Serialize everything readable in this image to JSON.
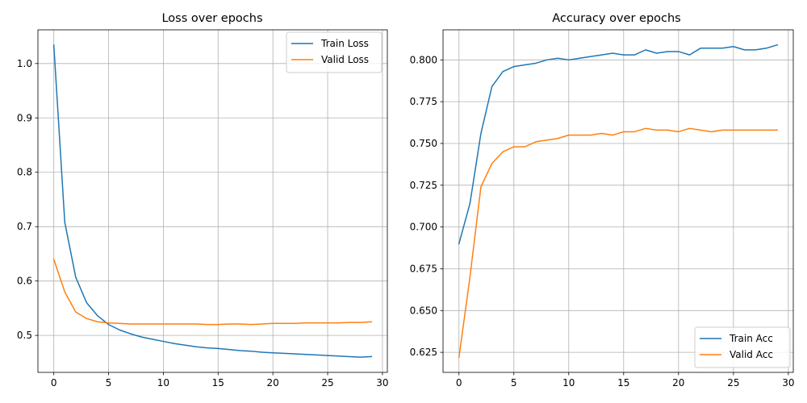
{
  "colors": {
    "train": "#1f77b4",
    "valid": "#ff7f0e"
  },
  "chart_data": [
    {
      "type": "line",
      "title": "Loss over epochs",
      "xlabel": "",
      "ylabel": "",
      "grid": true,
      "legend": "top-right",
      "xlim": [
        -1.45,
        30.45
      ],
      "ylim": [
        0.432,
        1.062
      ],
      "xticks": [
        0,
        5,
        10,
        15,
        20,
        25,
        30
      ],
      "yticks": [
        0.5,
        0.6,
        0.7,
        0.8,
        0.9,
        1.0
      ],
      "ytick_labels": [
        "0.5",
        "0.6",
        "0.7",
        "0.8",
        "0.9",
        "1.0"
      ],
      "x": [
        0,
        1,
        2,
        3,
        4,
        5,
        6,
        7,
        8,
        9,
        10,
        11,
        12,
        13,
        14,
        15,
        16,
        17,
        18,
        19,
        20,
        21,
        22,
        23,
        24,
        25,
        26,
        27,
        28,
        29
      ],
      "series": [
        {
          "name": "Train Loss",
          "color": "#1f77b4",
          "values": [
            1.034,
            0.708,
            0.607,
            0.56,
            0.536,
            0.52,
            0.51,
            0.503,
            0.497,
            0.493,
            0.489,
            0.485,
            0.482,
            0.479,
            0.477,
            0.476,
            0.474,
            0.472,
            0.471,
            0.469,
            0.468,
            0.467,
            0.466,
            0.465,
            0.464,
            0.463,
            0.462,
            0.461,
            0.46,
            0.461
          ]
        },
        {
          "name": "Valid Loss",
          "color": "#ff7f0e",
          "values": [
            0.64,
            0.58,
            0.543,
            0.531,
            0.525,
            0.523,
            0.522,
            0.521,
            0.521,
            0.521,
            0.521,
            0.521,
            0.521,
            0.521,
            0.52,
            0.52,
            0.521,
            0.521,
            0.52,
            0.521,
            0.522,
            0.522,
            0.522,
            0.523,
            0.523,
            0.523,
            0.523,
            0.524,
            0.524,
            0.525
          ]
        }
      ]
    },
    {
      "type": "line",
      "title": "Accuracy over epochs",
      "xlabel": "",
      "ylabel": "",
      "grid": true,
      "legend": "bottom-right",
      "xlim": [
        -1.45,
        30.45
      ],
      "ylim": [
        0.613,
        0.818
      ],
      "xticks": [
        0,
        5,
        10,
        15,
        20,
        25,
        30
      ],
      "yticks": [
        0.625,
        0.65,
        0.675,
        0.7,
        0.725,
        0.75,
        0.775,
        0.8
      ],
      "ytick_labels": [
        "0.625",
        "0.650",
        "0.675",
        "0.700",
        "0.725",
        "0.750",
        "0.775",
        "0.800"
      ],
      "x": [
        0,
        1,
        2,
        3,
        4,
        5,
        6,
        7,
        8,
        9,
        10,
        11,
        12,
        13,
        14,
        15,
        16,
        17,
        18,
        19,
        20,
        21,
        22,
        23,
        24,
        25,
        26,
        27,
        28,
        29
      ],
      "series": [
        {
          "name": "Train Acc",
          "color": "#1f77b4",
          "values": [
            0.69,
            0.714,
            0.756,
            0.784,
            0.793,
            0.796,
            0.797,
            0.798,
            0.8,
            0.801,
            0.8,
            0.801,
            0.802,
            0.803,
            0.804,
            0.803,
            0.803,
            0.806,
            0.804,
            0.805,
            0.805,
            0.803,
            0.807,
            0.807,
            0.807,
            0.808,
            0.806,
            0.806,
            0.807,
            0.809
          ]
        },
        {
          "name": "Valid Acc",
          "color": "#ff7f0e",
          "values": [
            0.622,
            0.67,
            0.724,
            0.738,
            0.745,
            0.748,
            0.748,
            0.751,
            0.752,
            0.753,
            0.755,
            0.755,
            0.755,
            0.756,
            0.755,
            0.757,
            0.757,
            0.759,
            0.758,
            0.758,
            0.757,
            0.759,
            0.758,
            0.757,
            0.758,
            0.758,
            0.758,
            0.758,
            0.758,
            0.758
          ]
        }
      ]
    }
  ]
}
